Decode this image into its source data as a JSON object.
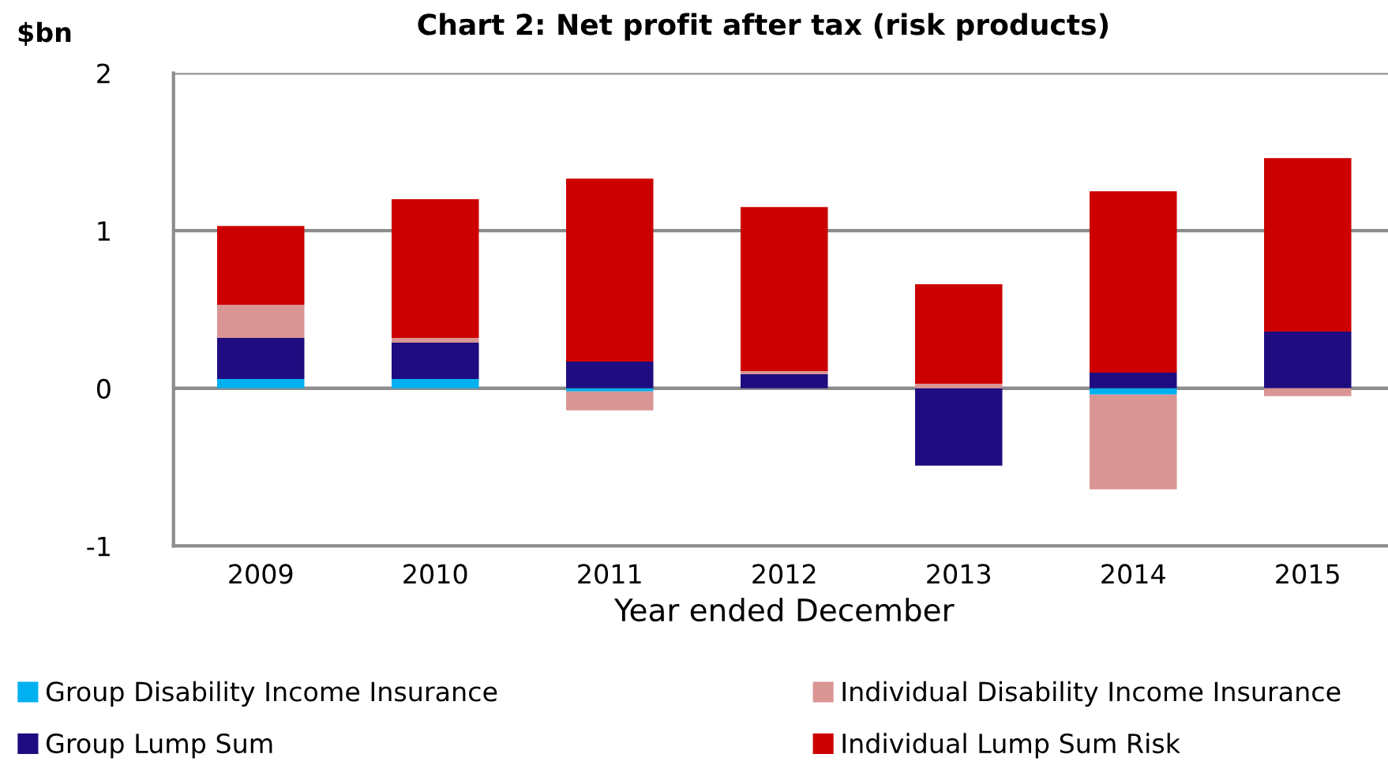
{
  "chart_data": {
    "type": "bar",
    "title": "Chart 2: Net profit after tax (risk products)",
    "ylabel": "$bn",
    "xlabel": "Year ended December",
    "categories": [
      "2009",
      "2010",
      "2011",
      "2012",
      "2013",
      "2014",
      "2015"
    ],
    "series": [
      {
        "name": "Group Disability Income Insurance",
        "color": "#00b0f0",
        "values": [
          0.06,
          0.06,
          -0.02,
          0,
          0,
          -0.04,
          0
        ]
      },
      {
        "name": "Group Lump Sum",
        "color": "#1f0c80",
        "values": [
          0.26,
          0.23,
          0.17,
          0.09,
          -0.49,
          0.1,
          0.36
        ]
      },
      {
        "name": "Individual Disability Income Insurance",
        "color": "#d99594",
        "values": [
          0.21,
          0.03,
          -0.12,
          0.02,
          0.03,
          -0.6,
          -0.05
        ]
      },
      {
        "name": "Individual Lump Sum Risk",
        "color": "#cc0000",
        "values": [
          0.5,
          0.88,
          1.16,
          1.04,
          0.63,
          1.15,
          1.1
        ]
      }
    ],
    "stacked": true,
    "ylim": [
      -1,
      2
    ],
    "yticks": [
      -1,
      0,
      1,
      2
    ],
    "grid": "y",
    "legend": "bottom"
  }
}
